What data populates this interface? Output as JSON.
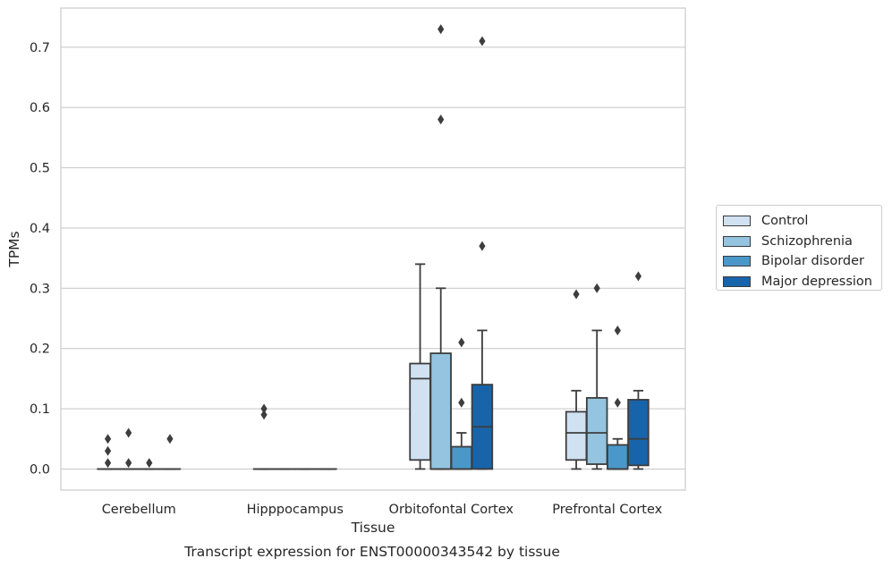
{
  "chart_data": {
    "type": "box",
    "title": "Transcript expression for ENST00000343542 by tissue",
    "xlabel": "Tissue",
    "ylabel": "TPMs",
    "ylim": [
      -0.035,
      0.765
    ],
    "yticks": [
      "0.0",
      "0.1",
      "0.2",
      "0.3",
      "0.4",
      "0.5",
      "0.6",
      "0.7"
    ],
    "grid": "horizontal",
    "legend_position": "right",
    "categories": [
      "Cerebellum",
      "Hipppocampus",
      "Orbitofontal Cortex",
      "Prefrontal Cortex"
    ],
    "series": [
      {
        "name": "Control",
        "color": "#d0e1f2",
        "boxes": [
          {
            "whislo": 0,
            "q1": 0,
            "med": 0,
            "q3": 0,
            "whishi": 0,
            "fliers": [
              0.01,
              0.03,
              0.05
            ]
          },
          {
            "whislo": 0,
            "q1": 0,
            "med": 0,
            "q3": 0,
            "whishi": 0,
            "fliers": [
              0.09,
              0.1
            ]
          },
          {
            "whislo": 0,
            "q1": 0.015,
            "med": 0.15,
            "q3": 0.175,
            "whishi": 0.34,
            "fliers": []
          },
          {
            "whislo": 0,
            "q1": 0.015,
            "med": 0.06,
            "q3": 0.095,
            "whishi": 0.13,
            "fliers": [
              0.29
            ]
          }
        ]
      },
      {
        "name": "Schizophrenia",
        "color": "#94c4df",
        "boxes": [
          {
            "whislo": 0,
            "q1": 0,
            "med": 0,
            "q3": 0,
            "whishi": 0,
            "fliers": [
              0.01,
              0.06
            ]
          },
          {
            "whislo": 0,
            "q1": 0,
            "med": 0,
            "q3": 0,
            "whishi": 0,
            "fliers": []
          },
          {
            "whislo": 0,
            "q1": 0,
            "med": 0,
            "q3": 0.192,
            "whishi": 0.3,
            "fliers": [
              0.58,
              0.73
            ]
          },
          {
            "whislo": 0,
            "q1": 0.008,
            "med": 0.06,
            "q3": 0.118,
            "whishi": 0.23,
            "fliers": [
              0.3
            ]
          }
        ]
      },
      {
        "name": "Bipolar disorder",
        "color": "#4a98c9",
        "boxes": [
          {
            "whislo": 0,
            "q1": 0,
            "med": 0,
            "q3": 0,
            "whishi": 0,
            "fliers": [
              0.01
            ]
          },
          {
            "whislo": 0,
            "q1": 0,
            "med": 0,
            "q3": 0,
            "whishi": 0,
            "fliers": []
          },
          {
            "whislo": 0,
            "q1": 0,
            "med": 0,
            "q3": 0.037,
            "whishi": 0.06,
            "fliers": [
              0.11,
              0.21
            ]
          },
          {
            "whislo": 0,
            "q1": 0,
            "med": 0,
            "q3": 0.04,
            "whishi": 0.05,
            "fliers": [
              0.11,
              0.23
            ]
          }
        ]
      },
      {
        "name": "Major depression",
        "color": "#1764ab",
        "boxes": [
          {
            "whislo": 0,
            "q1": 0,
            "med": 0,
            "q3": 0,
            "whishi": 0,
            "fliers": [
              0.05
            ]
          },
          {
            "whislo": 0,
            "q1": 0,
            "med": 0,
            "q3": 0,
            "whishi": 0,
            "fliers": []
          },
          {
            "whislo": 0,
            "q1": 0,
            "med": 0.07,
            "q3": 0.14,
            "whishi": 0.23,
            "fliers": [
              0.37,
              0.71
            ]
          },
          {
            "whislo": 0,
            "q1": 0.006,
            "med": 0.05,
            "q3": 0.115,
            "whishi": 0.13,
            "fliers": [
              0.32
            ]
          }
        ]
      }
    ]
  }
}
